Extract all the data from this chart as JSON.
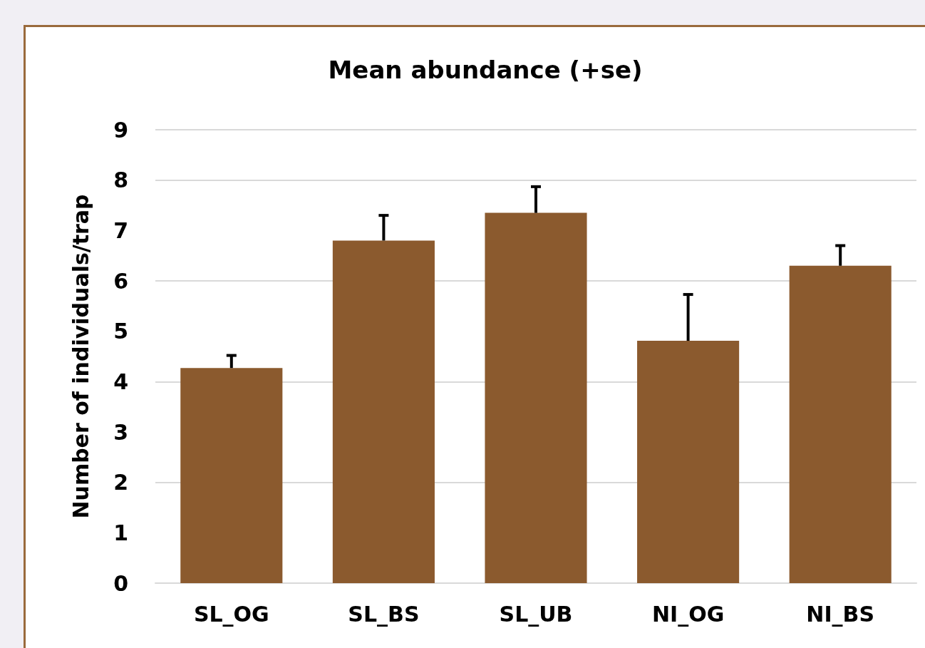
{
  "chart_data": {
    "type": "bar",
    "title": "Mean abundance (+se)",
    "ylabel": "Number of individuals/trap",
    "categories": [
      "SL_OG",
      "SL_BS",
      "SL_UB",
      "NI_OG",
      "NI_BS"
    ],
    "values": [
      4.27,
      6.8,
      7.35,
      4.81,
      6.3
    ],
    "errors": [
      [
        4.27,
        4.52
      ],
      [
        6.8,
        7.3
      ],
      [
        7.35,
        7.87
      ],
      [
        4.81,
        5.73
      ],
      [
        6.3,
        6.7
      ]
    ],
    "color": "#8b5a2e",
    "ylim": [
      0,
      9
    ],
    "yticks": [
      0,
      1,
      2,
      3,
      4,
      5,
      6,
      7,
      8,
      9
    ],
    "grid": "y"
  }
}
